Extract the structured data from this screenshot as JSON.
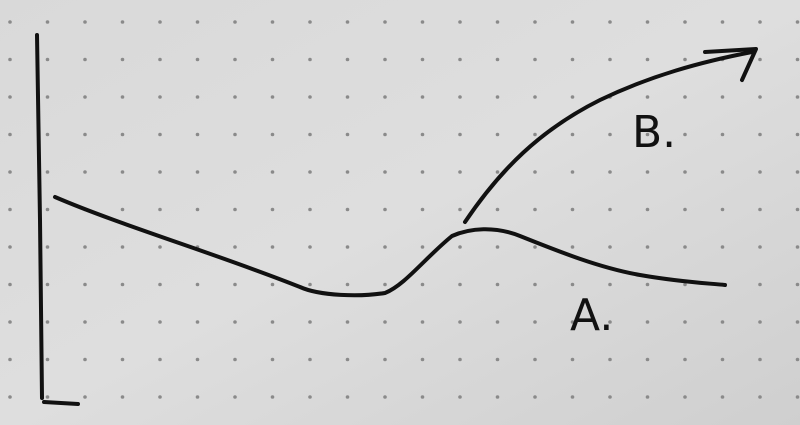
{
  "labels": {
    "a": "A.",
    "b": "B."
  }
}
